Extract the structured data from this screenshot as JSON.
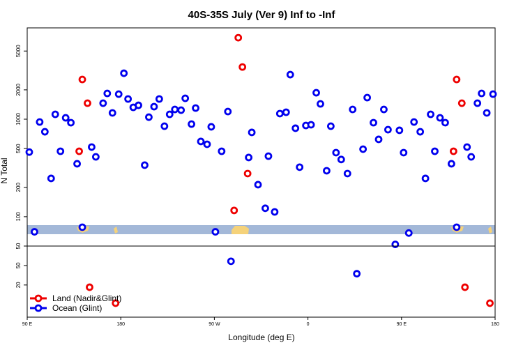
{
  "chart_data": [
    {
      "type": "scatter",
      "title": "40S-35S July (Ver 9)   Inf to -Inf",
      "ylabel": "N Total",
      "log_y": true,
      "xlim": [
        90,
        540
      ],
      "ylim": [
        50,
        8640
      ],
      "yticks": [
        50,
        100,
        200,
        500,
        1000,
        2000,
        5000
      ],
      "series": [
        {
          "name": "Land (Nadir&Glint)",
          "color": "#ee0000",
          "x": [
            140,
            143,
            148,
            289,
            293,
            297,
            302,
            500,
            503,
            508
          ],
          "values": [
            469,
            2555,
            1460,
            116,
            6850,
            3430,
            277,
            469,
            2555,
            1460
          ]
        },
        {
          "name": "Ocean (Glint)",
          "color": "#0000ee",
          "x": [
            92,
            97,
            102,
            107,
            113,
            117,
            122,
            127,
            132,
            138,
            143,
            152,
            156,
            163,
            167,
            172,
            178,
            183,
            187,
            192,
            197,
            203,
            207,
            212,
            217,
            222,
            227,
            232,
            238,
            242,
            248,
            252,
            257,
            263,
            267,
            271,
            277,
            283,
            303,
            306,
            312,
            319,
            322,
            328,
            333,
            339,
            343,
            348,
            352,
            358,
            363,
            368,
            372,
            378,
            382,
            387,
            392,
            398,
            403,
            413,
            417,
            423,
            428,
            433,
            437,
            444,
            448,
            452,
            457,
            462,
            468,
            473,
            478,
            482,
            487,
            492,
            498,
            503,
            513,
            517,
            523,
            527,
            532,
            538
          ],
          "values": [
            460,
            70,
            936,
            743,
            247,
            1122,
            469,
            1033,
            921,
            349,
            78,
            518,
            411,
            1460,
            1838,
            1160,
            1808,
            2960,
            1612,
            1323,
            1389,
            338,
            1050,
            1345,
            1612,
            848,
            1122,
            1259,
            1238,
            1638,
            891,
            1301,
            591,
            553,
            835,
            70,
            469,
            1198,
            405,
            732,
            213,
            122,
            418,
            112,
            1141,
            1179,
            2865,
            808,
            322,
            862,
            877,
            1868,
            1436,
            296,
            848,
            454,
            386,
            277,
            1259,
            493,
            1665,
            921,
            621,
            1259,
            781,
            52,
            769,
            454,
            68,
            936,
            743,
            247,
            1122,
            469,
            1033,
            921,
            349,
            78,
            518,
            411,
            1460,
            1838,
            1160,
            1808
          ]
        }
      ]
    },
    {
      "type": "scatter",
      "xlabel": "Longitude (deg E)",
      "log_y": true,
      "legend": "lower left",
      "xlim": [
        90,
        540
      ],
      "ylim": [
        4.4,
        125
      ],
      "xticks": [
        {
          "value": 90,
          "label": "90 E"
        },
        {
          "value": 180,
          "label": "180"
        },
        {
          "value": 270,
          "label": "90 W"
        },
        {
          "value": 360,
          "label": "0"
        },
        {
          "value": 450,
          "label": "90 E"
        },
        {
          "value": 540,
          "label": "180"
        }
      ],
      "yticks": [
        20,
        50
      ],
      "series": [
        {
          "name": "Land (Nadir&Glint)",
          "color": "#ee0000",
          "x": [
            150,
            175,
            511,
            535
          ],
          "values": [
            18,
            8.5,
            18,
            8.5
          ]
        },
        {
          "name": "Ocean (Glint)",
          "color": "#0000ee",
          "x": [
            286,
            407
          ],
          "values": [
            61,
            34
          ]
        }
      ]
    }
  ]
}
